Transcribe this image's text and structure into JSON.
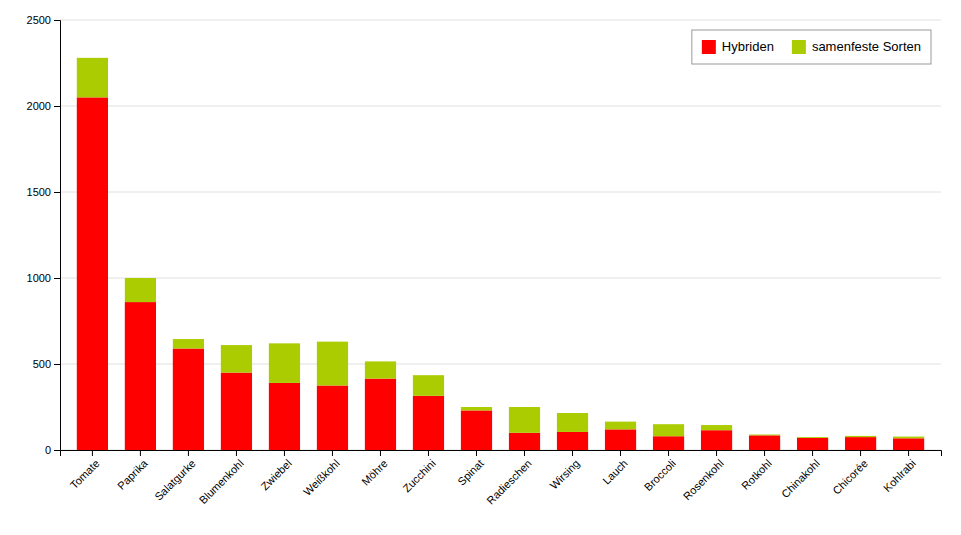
{
  "chart_data": {
    "type": "bar",
    "stacked": true,
    "categories": [
      "Tomate",
      "Paprika",
      "Salatgurke",
      "Blumenkohl",
      "Zwiebel",
      "Weißkohl",
      "Möhre",
      "Zucchini",
      "Spinat",
      "Radieschen",
      "Wirsing",
      "Lauch",
      "Broccoli",
      "Rosenkohl",
      "Rotkohl",
      "Chinakohl",
      "Chicorée",
      "Kohlrabi"
    ],
    "series": [
      {
        "name": "Hybriden",
        "color": "#FF0000",
        "values": [
          2050,
          860,
          590,
          450,
          390,
          375,
          415,
          315,
          230,
          100,
          105,
          120,
          80,
          115,
          85,
          70,
          75,
          68
        ]
      },
      {
        "name": "samenfeste Sorten",
        "color": "#AACC00",
        "values": [
          230,
          140,
          55,
          160,
          230,
          255,
          100,
          120,
          20,
          150,
          110,
          45,
          70,
          30,
          5,
          5,
          7,
          10
        ]
      }
    ],
    "ylim": [
      0,
      2500
    ],
    "yticks": [
      0,
      500,
      1000,
      1500,
      2000,
      2500
    ],
    "grid": true,
    "legend": "upper right"
  }
}
